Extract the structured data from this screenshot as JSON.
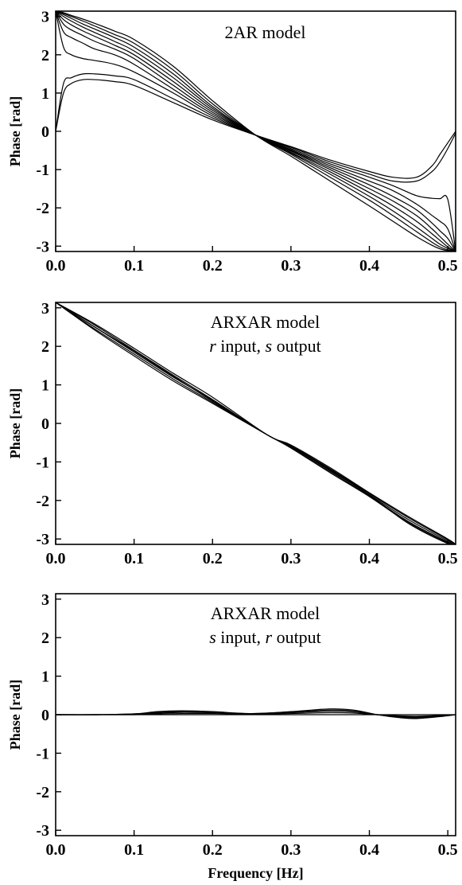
{
  "chart_data": [
    {
      "type": "line",
      "title": "2AR model",
      "subtitle": null,
      "xlabel": "",
      "ylabel": "Phase [rad]",
      "xlim": [
        0,
        0.51
      ],
      "ylim": [
        -3.14,
        3.14
      ],
      "x_ticks": [
        "0.0",
        "0.1",
        "0.2",
        "0.3",
        "0.4",
        "0.5"
      ],
      "y_ticks": [
        "3",
        "2",
        "1",
        "0",
        "-1",
        "-2",
        "-3"
      ],
      "grid": false,
      "legend": "none",
      "line_color": "#000000",
      "x": [
        0,
        0.01,
        0.02,
        0.035,
        0.05,
        0.075,
        0.1,
        0.15,
        0.2,
        0.255,
        0.3,
        0.35,
        0.4,
        0.43,
        0.46,
        0.48,
        0.49,
        0.5,
        0.51
      ],
      "series": [
        {
          "values": [
            0.0,
            1.0,
            1.25,
            1.35,
            1.35,
            1.3,
            1.2,
            0.75,
            0.3,
            -0.1,
            -0.4,
            -0.75,
            -1.05,
            -1.2,
            -1.2,
            -0.9,
            -0.6,
            -0.3,
            0.0
          ]
        },
        {
          "values": [
            0.0,
            1.25,
            1.4,
            1.5,
            1.5,
            1.45,
            1.35,
            0.85,
            0.35,
            -0.1,
            -0.42,
            -0.8,
            -1.12,
            -1.3,
            -1.3,
            -1.05,
            -0.8,
            -0.45,
            -0.05
          ]
        },
        {
          "values": [
            3.14,
            2.2,
            2.0,
            1.9,
            1.85,
            1.75,
            1.55,
            1.0,
            0.4,
            -0.1,
            -0.45,
            -0.85,
            -1.2,
            -1.42,
            -1.68,
            -1.75,
            -1.76,
            -1.78,
            -3.14
          ]
        },
        {
          "values": [
            3.14,
            2.6,
            2.45,
            2.3,
            2.15,
            2.0,
            1.75,
            1.1,
            0.45,
            -0.1,
            -0.48,
            -0.9,
            -1.3,
            -1.55,
            -1.9,
            -2.2,
            -2.35,
            -2.55,
            -3.14
          ]
        },
        {
          "values": [
            3.14,
            2.8,
            2.65,
            2.5,
            2.35,
            2.15,
            1.9,
            1.2,
            0.5,
            -0.1,
            -0.5,
            -0.95,
            -1.4,
            -1.7,
            -2.05,
            -2.4,
            -2.6,
            -2.8,
            -3.14
          ]
        },
        {
          "values": [
            3.14,
            2.92,
            2.78,
            2.62,
            2.48,
            2.25,
            2.0,
            1.3,
            0.55,
            -0.1,
            -0.52,
            -1.0,
            -1.5,
            -1.82,
            -2.2,
            -2.55,
            -2.75,
            -2.95,
            -3.14
          ]
        },
        {
          "values": [
            3.14,
            3.0,
            2.88,
            2.72,
            2.58,
            2.35,
            2.1,
            1.4,
            0.6,
            -0.1,
            -0.55,
            -1.06,
            -1.6,
            -1.95,
            -2.35,
            -2.68,
            -2.85,
            -3.02,
            -3.14
          ]
        },
        {
          "values": [
            3.14,
            3.05,
            2.95,
            2.8,
            2.67,
            2.45,
            2.2,
            1.5,
            0.65,
            -0.1,
            -0.57,
            -1.12,
            -1.7,
            -2.08,
            -2.5,
            -2.8,
            -2.95,
            -3.06,
            -3.14
          ]
        },
        {
          "values": [
            3.14,
            3.08,
            3.0,
            2.88,
            2.75,
            2.53,
            2.3,
            1.6,
            0.72,
            -0.1,
            -0.6,
            -1.2,
            -1.8,
            -2.2,
            -2.62,
            -2.9,
            -3.02,
            -3.1,
            -3.14
          ]
        },
        {
          "values": [
            3.14,
            3.1,
            3.03,
            2.93,
            2.82,
            2.62,
            2.4,
            1.7,
            0.8,
            -0.1,
            -0.65,
            -1.3,
            -1.95,
            -2.35,
            -2.75,
            -2.98,
            -3.07,
            -3.12,
            -3.14
          ]
        }
      ]
    },
    {
      "type": "line",
      "title": "ARXAR model",
      "subtitle": [
        {
          "text": "r",
          "italic": true
        },
        {
          "text": " input, ",
          "italic": false
        },
        {
          "text": "s",
          "italic": true
        },
        {
          "text": " output",
          "italic": false
        }
      ],
      "xlabel": "",
      "ylabel": "Phase [rad]",
      "xlim": [
        0,
        0.51
      ],
      "ylim": [
        -3.14,
        3.14
      ],
      "x_ticks": [
        "0.0",
        "0.1",
        "0.2",
        "0.3",
        "0.4",
        "0.5"
      ],
      "y_ticks": [
        "3",
        "2",
        "1",
        "0",
        "-1",
        "-2",
        "-3"
      ],
      "grid": false,
      "legend": "none",
      "line_color": "#000000",
      "x": [
        0,
        0.05,
        0.1,
        0.15,
        0.2,
        0.27,
        0.3,
        0.35,
        0.4,
        0.45,
        0.5,
        0.51
      ],
      "series": [
        {
          "values": [
            3.14,
            2.5,
            1.85,
            1.2,
            0.6,
            -0.3,
            -0.6,
            -1.2,
            -1.85,
            -2.5,
            -3.05,
            -3.14
          ]
        },
        {
          "values": [
            3.14,
            2.45,
            1.8,
            1.15,
            0.55,
            -0.3,
            -0.62,
            -1.25,
            -1.88,
            -2.55,
            -3.08,
            -3.14
          ]
        },
        {
          "values": [
            3.14,
            2.55,
            1.9,
            1.25,
            0.62,
            -0.3,
            -0.58,
            -1.18,
            -1.82,
            -2.45,
            -3.02,
            -3.14
          ]
        },
        {
          "values": [
            3.14,
            2.42,
            1.75,
            1.1,
            0.52,
            -0.3,
            -0.64,
            -1.28,
            -1.9,
            -2.58,
            -3.1,
            -3.14
          ]
        },
        {
          "values": [
            3.14,
            2.58,
            1.95,
            1.3,
            0.68,
            -0.3,
            -0.56,
            -1.15,
            -1.8,
            -2.42,
            -3.0,
            -3.14
          ]
        },
        {
          "values": [
            3.14,
            2.5,
            1.88,
            1.22,
            0.58,
            -0.3,
            -0.6,
            -1.22,
            -1.86,
            -2.6,
            -3.12,
            -3.14
          ]
        }
      ]
    },
    {
      "type": "line",
      "title": "ARXAR model",
      "subtitle": [
        {
          "text": "s",
          "italic": true
        },
        {
          "text": " input, ",
          "italic": false
        },
        {
          "text": "r",
          "italic": true
        },
        {
          "text": " output",
          "italic": false
        }
      ],
      "xlabel": "Frequency [Hz]",
      "ylabel": "Phase [rad]",
      "xlim": [
        0,
        0.51
      ],
      "ylim": [
        -3.14,
        3.14
      ],
      "x_ticks": [
        "0.0",
        "0.1",
        "0.2",
        "0.3",
        "0.4",
        "0.5"
      ],
      "y_ticks": [
        "3",
        "2",
        "1",
        "0",
        "-1",
        "-2",
        "-3"
      ],
      "grid": false,
      "legend": "none",
      "line_color": "#000000",
      "x": [
        0,
        0.05,
        0.1,
        0.13,
        0.16,
        0.2,
        0.25,
        0.3,
        0.35,
        0.38,
        0.41,
        0.44,
        0.46,
        0.49,
        0.51
      ],
      "series": [
        {
          "values": [
            0,
            0,
            0.02,
            0.08,
            0.1,
            0.08,
            0.03,
            0.08,
            0.15,
            0.12,
            0.0,
            -0.08,
            -0.1,
            -0.05,
            0
          ]
        },
        {
          "values": [
            0,
            0,
            0.02,
            0.06,
            0.08,
            0.06,
            0.03,
            0.07,
            0.12,
            0.1,
            0.0,
            -0.06,
            -0.08,
            -0.04,
            0
          ]
        },
        {
          "values": [
            0,
            0,
            0.01,
            0.04,
            0.06,
            0.05,
            0.02,
            0.05,
            0.09,
            0.07,
            0.0,
            -0.05,
            -0.06,
            -0.03,
            0
          ]
        },
        {
          "values": [
            0,
            0,
            0.0,
            0.02,
            0.03,
            0.03,
            0.01,
            0.03,
            0.05,
            0.04,
            0.0,
            -0.03,
            -0.04,
            -0.02,
            0
          ]
        },
        {
          "values": [
            0,
            0,
            0.0,
            0.0,
            0.0,
            0.0,
            0.0,
            0.0,
            0.0,
            0.0,
            0.0,
            0.0,
            0.0,
            0.0,
            0
          ]
        }
      ]
    }
  ]
}
